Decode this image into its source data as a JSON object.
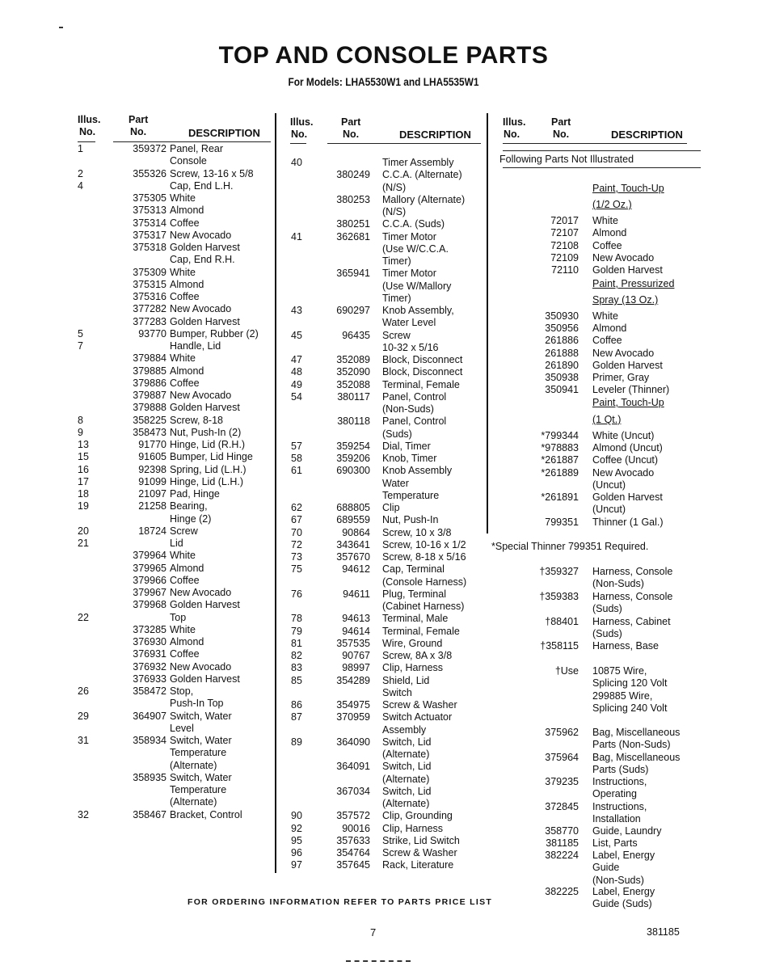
{
  "title": "TOP AND CONSOLE PARTS",
  "subtitle": "For Models: LHA5530W1 and LHA5535W1",
  "headers": {
    "illus1": "Illus.",
    "illus2": "No.",
    "part1": "Part",
    "part2": "No.",
    "desc": "DESCRIPTION"
  },
  "columns": [
    {
      "rows": [
        {
          "illus": "1",
          "part": "359372",
          "desc": [
            "Panel, Rear",
            "Console"
          ]
        },
        {
          "illus": "2",
          "part": "355326",
          "desc": [
            "Screw, 13-16 x 5/8"
          ]
        },
        {
          "illus": "4",
          "part": "",
          "desc": [
            "Cap, End L.H."
          ]
        },
        {
          "illus": "",
          "part": "375305",
          "desc": [
            "White"
          ]
        },
        {
          "illus": "",
          "part": "375313",
          "desc": [
            "Almond"
          ]
        },
        {
          "illus": "",
          "part": "375314",
          "desc": [
            "Coffee"
          ]
        },
        {
          "illus": "",
          "part": "375317",
          "desc": [
            "New Avocado"
          ]
        },
        {
          "illus": "",
          "part": "375318",
          "desc": [
            "Golden Harvest"
          ]
        },
        {
          "illus": "",
          "part": "",
          "desc": [
            "Cap, End R.H."
          ]
        },
        {
          "illus": "",
          "part": "375309",
          "desc": [
            "White"
          ]
        },
        {
          "illus": "",
          "part": "375315",
          "desc": [
            "Almond"
          ]
        },
        {
          "illus": "",
          "part": "375316",
          "desc": [
            "Coffee"
          ]
        },
        {
          "illus": "",
          "part": "377282",
          "desc": [
            "New Avocado"
          ]
        },
        {
          "illus": "",
          "part": "377283",
          "desc": [
            "Golden Harvest"
          ]
        },
        {
          "illus": "5",
          "part": "93770",
          "desc": [
            "Bumper, Rubber (2)"
          ]
        },
        {
          "illus": "7",
          "part": "",
          "desc": [
            "Handle, Lid"
          ]
        },
        {
          "illus": "",
          "part": "379884",
          "desc": [
            "White"
          ]
        },
        {
          "illus": "",
          "part": "379885",
          "desc": [
            "Almond"
          ]
        },
        {
          "illus": "",
          "part": "379886",
          "desc": [
            "Coffee"
          ]
        },
        {
          "illus": "",
          "part": "379887",
          "desc": [
            "New Avocado"
          ]
        },
        {
          "illus": "",
          "part": "379888",
          "desc": [
            "Golden Harvest"
          ]
        },
        {
          "illus": "8",
          "part": "358225",
          "desc": [
            "Screw, 8-18"
          ]
        },
        {
          "illus": "9",
          "part": "358473",
          "desc": [
            "Nut, Push-In (2)"
          ]
        },
        {
          "illus": "13",
          "part": "91770",
          "desc": [
            "Hinge, Lid (R.H.)"
          ]
        },
        {
          "illus": "15",
          "part": "91605",
          "desc": [
            "Bumper, Lid Hinge"
          ]
        },
        {
          "illus": "16",
          "part": "92398",
          "desc": [
            "Spring, Lid (L.H.)"
          ]
        },
        {
          "illus": "17",
          "part": "91099",
          "desc": [
            "Hinge, Lid (L.H.)"
          ]
        },
        {
          "illus": "18",
          "part": "21097",
          "desc": [
            "Pad, Hinge"
          ]
        },
        {
          "illus": "19",
          "part": "21258",
          "desc": [
            "Bearing,",
            "Hinge (2)"
          ]
        },
        {
          "illus": "20",
          "part": "18724",
          "desc": [
            "Screw"
          ]
        },
        {
          "illus": "21",
          "part": "",
          "desc": [
            "Lid"
          ]
        },
        {
          "illus": "",
          "part": "379964",
          "desc": [
            "White"
          ]
        },
        {
          "illus": "",
          "part": "379965",
          "desc": [
            "Almond"
          ]
        },
        {
          "illus": "",
          "part": "379966",
          "desc": [
            "Coffee"
          ]
        },
        {
          "illus": "",
          "part": "379967",
          "desc": [
            "New Avocado"
          ]
        },
        {
          "illus": "",
          "part": "379968",
          "desc": [
            "Golden Harvest"
          ]
        },
        {
          "illus": "22",
          "part": "",
          "desc": [
            "Top"
          ]
        },
        {
          "illus": "",
          "part": "373285",
          "desc": [
            "White"
          ]
        },
        {
          "illus": "",
          "part": "376930",
          "desc": [
            "Almond"
          ]
        },
        {
          "illus": "",
          "part": "376931",
          "desc": [
            "Coffee"
          ]
        },
        {
          "illus": "",
          "part": "376932",
          "desc": [
            "New Avocado"
          ]
        },
        {
          "illus": "",
          "part": "376933",
          "desc": [
            "Golden Harvest"
          ]
        },
        {
          "illus": "26",
          "part": "358472",
          "desc": [
            "Stop,",
            "Push-In Top"
          ]
        },
        {
          "illus": "29",
          "part": "364907",
          "desc": [
            "Switch, Water",
            "Level"
          ]
        },
        {
          "illus": "31",
          "part": "358934",
          "desc": [
            "Switch, Water",
            "Temperature",
            "(Alternate)"
          ]
        },
        {
          "illus": "",
          "part": "358935",
          "desc": [
            "Switch, Water",
            "Temperature",
            "(Alternate)"
          ]
        },
        {
          "illus": "32",
          "part": "358467",
          "desc": [
            "Bracket, Control"
          ]
        }
      ]
    },
    {
      "rows": [
        {
          "illus": "40",
          "part": "",
          "desc": [
            "Timer Assembly"
          ]
        },
        {
          "illus": "",
          "part": "380249",
          "desc": [
            "C.C.A. (Alternate)",
            "(N/S)"
          ]
        },
        {
          "illus": "",
          "part": "380253",
          "desc": [
            "Mallory (Alternate)",
            "(N/S)"
          ]
        },
        {
          "illus": "",
          "part": "380251",
          "desc": [
            "C.C.A. (Suds)"
          ]
        },
        {
          "illus": "41",
          "part": "362681",
          "desc": [
            "Timer Motor",
            "(Use W/C.C.A.",
            "Timer)"
          ]
        },
        {
          "illus": "",
          "part": "365941",
          "desc": [
            "Timer Motor",
            "(Use W/Mallory",
            "Timer)"
          ]
        },
        {
          "illus": "43",
          "part": "690297",
          "desc": [
            "Knob Assembly,",
            "Water Level"
          ]
        },
        {
          "illus": "45",
          "part": "96435",
          "desc": [
            "Screw",
            "10-32 x 5/16"
          ]
        },
        {
          "illus": "47",
          "part": "352089",
          "desc": [
            "Block, Disconnect"
          ]
        },
        {
          "illus": "48",
          "part": "352090",
          "desc": [
            "Block, Disconnect"
          ]
        },
        {
          "illus": "49",
          "part": "352088",
          "desc": [
            "Terminal, Female"
          ]
        },
        {
          "illus": "54",
          "part": "380117",
          "desc": [
            "Panel, Control",
            "(Non-Suds)"
          ]
        },
        {
          "illus": "",
          "part": "380118",
          "desc": [
            "Panel, Control",
            "(Suds)"
          ]
        },
        {
          "illus": "57",
          "part": "359254",
          "desc": [
            "Dial, Timer"
          ]
        },
        {
          "illus": "58",
          "part": "359206",
          "desc": [
            "Knob, Timer"
          ]
        },
        {
          "illus": "61",
          "part": "690300",
          "desc": [
            "Knob Assembly",
            "Water",
            "Temperature"
          ]
        },
        {
          "illus": "62",
          "part": "688805",
          "desc": [
            "Clip"
          ]
        },
        {
          "illus": "67",
          "part": "689559",
          "desc": [
            "Nut, Push-In"
          ]
        },
        {
          "illus": "70",
          "part": "90864",
          "desc": [
            "Screw, 10 x 3/8"
          ]
        },
        {
          "illus": "72",
          "part": "343641",
          "desc": [
            "Screw, 10-16 x 1/2"
          ]
        },
        {
          "illus": "73",
          "part": "357670",
          "desc": [
            "Screw, 8-18 x 5/16"
          ]
        },
        {
          "illus": "75",
          "part": "94612",
          "desc": [
            "Cap, Terminal",
            "(Console Harness)"
          ]
        },
        {
          "illus": "76",
          "part": "94611",
          "desc": [
            "Plug, Terminal",
            "(Cabinet Harness)"
          ]
        },
        {
          "illus": "78",
          "part": "94613",
          "desc": [
            "Terminal, Male"
          ]
        },
        {
          "illus": "79",
          "part": "94614",
          "desc": [
            "Terminal, Female"
          ]
        },
        {
          "illus": "81",
          "part": "357535",
          "desc": [
            "Wire, Ground"
          ]
        },
        {
          "illus": "82",
          "part": "90767",
          "desc": [
            "Screw, 8A x 3/8"
          ]
        },
        {
          "illus": "83",
          "part": "98997",
          "desc": [
            "Clip, Harness"
          ]
        },
        {
          "illus": "85",
          "part": "354289",
          "desc": [
            "Shield, Lid",
            "Switch"
          ]
        },
        {
          "illus": "86",
          "part": "354975",
          "desc": [
            "Screw & Washer"
          ]
        },
        {
          "illus": "87",
          "part": "370959",
          "desc": [
            "Switch Actuator",
            "Assembly"
          ]
        },
        {
          "illus": "89",
          "part": "364090",
          "desc": [
            "Switch, Lid",
            "(Alternate)"
          ]
        },
        {
          "illus": "",
          "part": "364091",
          "desc": [
            "Switch, Lid",
            "(Alternate)"
          ]
        },
        {
          "illus": "",
          "part": "367034",
          "desc": [
            "Switch, Lid",
            "(Alternate)"
          ]
        },
        {
          "illus": "90",
          "part": "357572",
          "desc": [
            "Clip, Grounding"
          ]
        },
        {
          "illus": "92",
          "part": "90016",
          "desc": [
            "Clip, Harness"
          ]
        },
        {
          "illus": "95",
          "part": "357633",
          "desc": [
            "Strike, Lid Switch"
          ]
        },
        {
          "illus": "96",
          "part": "354764",
          "desc": [
            "Screw & Washer"
          ]
        },
        {
          "illus": "97",
          "part": "357645",
          "desc": [
            "Rack, Literature"
          ]
        }
      ]
    },
    {
      "not_illustrated": "Following Parts Not Illustrated",
      "special_note": "*Special Thinner 799351 Required.",
      "rows": [
        {
          "part": "",
          "desc": [
            "Paint, Touch-Up"
          ],
          "underline": true
        },
        {
          "part": "",
          "desc": [
            "(1/2 Oz.)"
          ],
          "underline": true
        },
        {
          "part": "72017",
          "desc": [
            "White"
          ]
        },
        {
          "part": "72107",
          "desc": [
            "Almond"
          ]
        },
        {
          "part": "72108",
          "desc": [
            "Coffee"
          ]
        },
        {
          "part": "72109",
          "desc": [
            "New Avocado"
          ]
        },
        {
          "part": "72110",
          "desc": [
            "Golden Harvest"
          ]
        },
        {
          "part": "",
          "desc": [
            "Paint, Pressurized"
          ],
          "underline": true
        },
        {
          "part": "",
          "desc": [
            "Spray (13 Oz.)"
          ],
          "underline": true
        },
        {
          "part": "350930",
          "desc": [
            "White"
          ]
        },
        {
          "part": "350956",
          "desc": [
            "Almond"
          ]
        },
        {
          "part": "261886",
          "desc": [
            "Coffee"
          ]
        },
        {
          "part": "261888",
          "desc": [
            "New Avocado"
          ]
        },
        {
          "part": "261890",
          "desc": [
            "Golden Harvest"
          ]
        },
        {
          "part": "350938",
          "desc": [
            "Primer, Gray"
          ]
        },
        {
          "part": "350941",
          "desc": [
            "Leveler (Thinner)"
          ]
        },
        {
          "part": "",
          "desc": [
            "Paint, Touch-Up"
          ],
          "underline": true
        },
        {
          "part": "",
          "desc": [
            "(1 Qt.)"
          ],
          "underline": true
        },
        {
          "part": "*799344",
          "desc": [
            "White (Uncut)"
          ]
        },
        {
          "part": "*978883",
          "desc": [
            "Almond (Uncut)"
          ]
        },
        {
          "part": "*261887",
          "desc": [
            "Coffee (Uncut)"
          ]
        },
        {
          "part": "*261889",
          "desc": [
            "New Avocado",
            "(Uncut)"
          ]
        },
        {
          "part": "*261891",
          "desc": [
            "Golden Harvest",
            "(Uncut)"
          ]
        },
        {
          "part": "799351",
          "desc": [
            "Thinner (1 Gal.)"
          ]
        },
        {
          "part": "†359327",
          "desc": [
            "Harness, Console",
            "(Non-Suds)"
          ]
        },
        {
          "part": "†359383",
          "desc": [
            "Harness, Console",
            "(Suds)"
          ]
        },
        {
          "part": "†88401",
          "desc": [
            "Harness, Cabinet",
            "(Suds)"
          ]
        },
        {
          "part": "†358115",
          "desc": [
            "Harness, Base"
          ]
        },
        {
          "part": "†Use",
          "desc": [
            "10875 Wire,",
            "Splicing 120 Volt",
            "299885 Wire,",
            "Splicing 240 Volt"
          ]
        },
        {
          "part": "375962",
          "desc": [
            "Bag, Miscellaneous",
            "Parts (Non-Suds)"
          ]
        },
        {
          "part": "375964",
          "desc": [
            "Bag, Miscellaneous",
            "Parts (Suds)"
          ]
        },
        {
          "part": "379235",
          "desc": [
            "Instructions,",
            "Operating"
          ]
        },
        {
          "part": "372845",
          "desc": [
            "Instructions,",
            "Installation"
          ]
        },
        {
          "part": "358770",
          "desc": [
            "Guide, Laundry"
          ]
        },
        {
          "part": "381185",
          "desc": [
            "List, Parts"
          ]
        },
        {
          "part": "382224",
          "desc": [
            "Label, Energy",
            "Guide",
            "(Non-Suds)"
          ]
        },
        {
          "part": "382225",
          "desc": [
            "Label, Energy",
            "Guide (Suds)"
          ]
        }
      ]
    }
  ],
  "footer": {
    "ordering_note": "FOR ORDERING INFORMATION REFER TO PARTS PRICE LIST",
    "page_number": "7",
    "document_number": "381185"
  }
}
